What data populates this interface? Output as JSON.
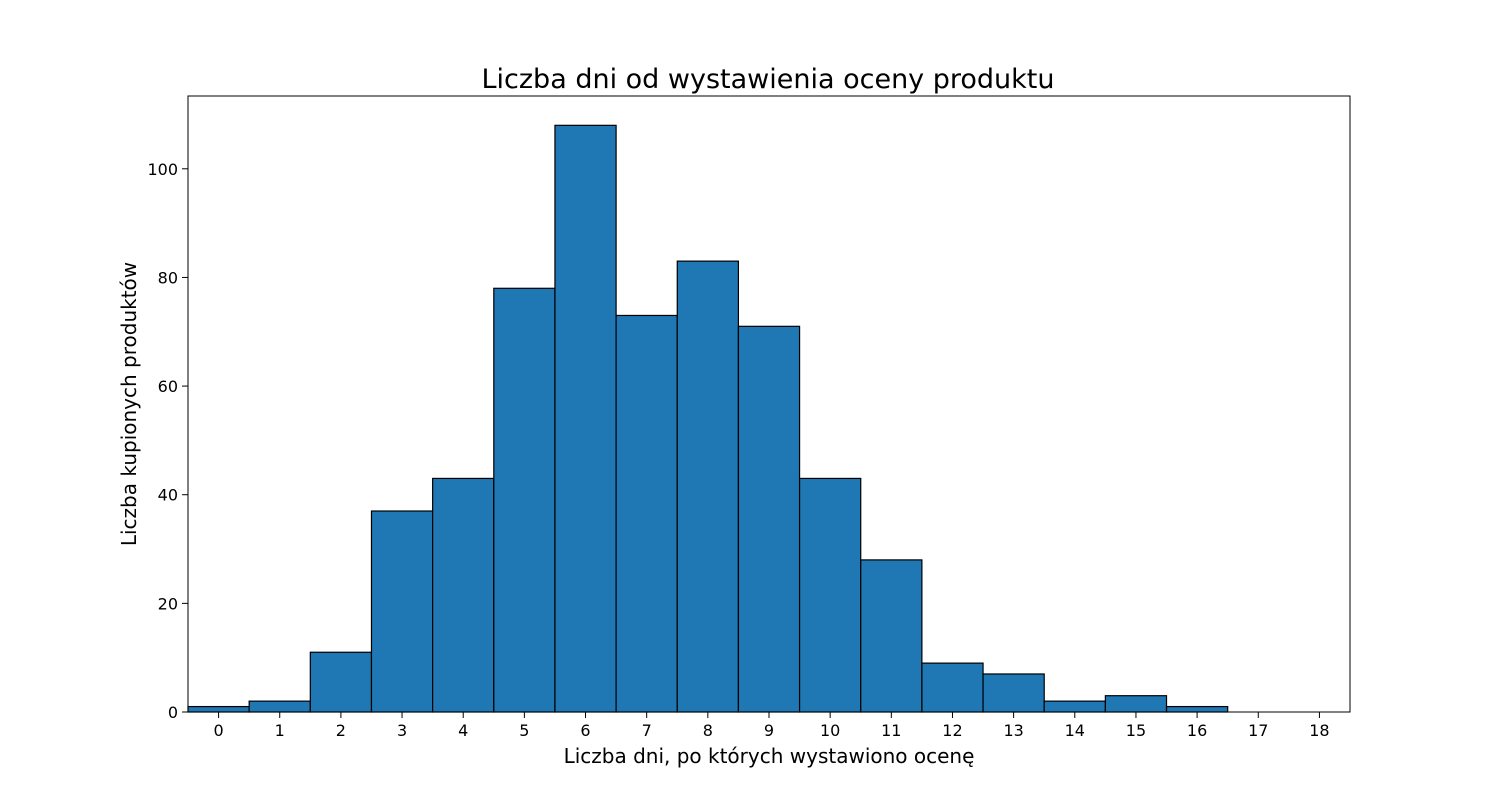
{
  "chart_data": {
    "type": "bar",
    "title": "Liczba dni od wystawienia oceny produktu",
    "xlabel": "Liczba dni, po których wystawiono ocenę",
    "ylabel": "Liczba kupionych produktów",
    "categories": [
      "0",
      "1",
      "2",
      "3",
      "4",
      "5",
      "6",
      "7",
      "8",
      "9",
      "10",
      "11",
      "12",
      "13",
      "14",
      "15",
      "16",
      "17",
      "18"
    ],
    "values": [
      1,
      2,
      11,
      37,
      43,
      78,
      108,
      73,
      83,
      71,
      43,
      28,
      9,
      7,
      2,
      3,
      1,
      0,
      0
    ],
    "xlim": [
      -0.5,
      18.5
    ],
    "ylim": [
      0,
      113.4
    ],
    "yticks": [
      0,
      20,
      40,
      60,
      80,
      100
    ],
    "grid": false,
    "colors": {
      "bar_fill": "#1f77b4",
      "bar_edge": "#000000"
    }
  }
}
